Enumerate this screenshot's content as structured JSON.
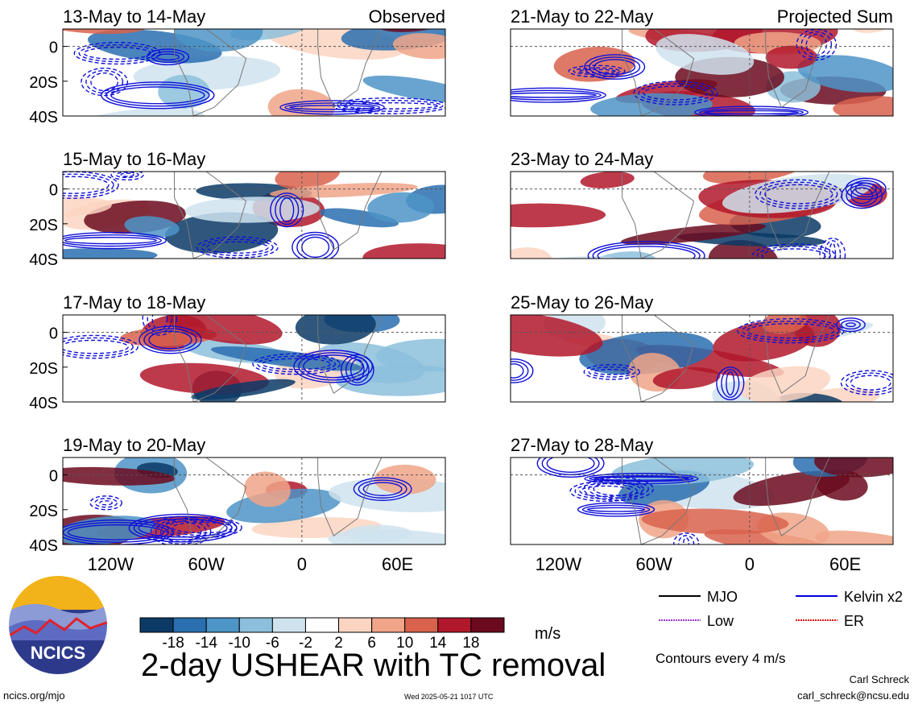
{
  "panels": [
    {
      "id": "p1",
      "title": "13-May to 14-May",
      "tag": "Observed",
      "col": 0,
      "row": 0,
      "seed": 3
    },
    {
      "id": "p2",
      "title": "15-May to 16-May",
      "tag": "",
      "col": 0,
      "row": 1,
      "seed": 7
    },
    {
      "id": "p3",
      "title": "17-May to 18-May",
      "tag": "",
      "col": 0,
      "row": 2,
      "seed": 11
    },
    {
      "id": "p4",
      "title": "19-May to 20-May",
      "tag": "",
      "col": 0,
      "row": 3,
      "seed": 19
    },
    {
      "id": "p5",
      "title": "21-May to 22-May",
      "tag": "Projected Sum",
      "col": 1,
      "row": 0,
      "seed": 23
    },
    {
      "id": "p6",
      "title": "23-May to 24-May",
      "tag": "",
      "col": 1,
      "row": 1,
      "seed": 29
    },
    {
      "id": "p7",
      "title": "25-May to 26-May",
      "tag": "",
      "col": 1,
      "row": 2,
      "seed": 31
    },
    {
      "id": "p8",
      "title": "27-May to 28-May",
      "tag": "",
      "col": 1,
      "row": 3,
      "seed": 37
    }
  ],
  "y_ticks": [
    "0",
    "20S",
    "40S"
  ],
  "x_ticks": [
    "120W",
    "60W",
    "0",
    "60E"
  ],
  "legend": [
    {
      "label": "MJO",
      "color": "#000000"
    },
    {
      "label": "Kelvin x2",
      "color": "#0000dd"
    },
    {
      "label": "Low",
      "color": "#9933cc"
    },
    {
      "label": "ER",
      "color": "#dd1111"
    }
  ],
  "colorbar": {
    "labels": [
      "-18",
      "-14",
      "-10",
      "-6",
      "-2",
      "2",
      "6",
      "10",
      "14",
      "18"
    ],
    "colors": [
      "#0b3a66",
      "#2a6fb0",
      "#4d94c7",
      "#8cbfdc",
      "#cfe3ef",
      "#ffffff",
      "#fbd5c2",
      "#f0a488",
      "#d9624c",
      "#b2182b",
      "#6b0a1f"
    ]
  },
  "units": "m/s",
  "title": "2-day USHEAR with TC removal",
  "contour_note": "Contours every 4 m/s",
  "logo": {
    "text": "NCICS"
  },
  "footer": {
    "left": "ncics.org/mjo",
    "center": "Wed 2025-05-21 1017 UTC",
    "author": "Carl Schreck",
    "email": "carl_schreck@ncsu.edu"
  }
}
